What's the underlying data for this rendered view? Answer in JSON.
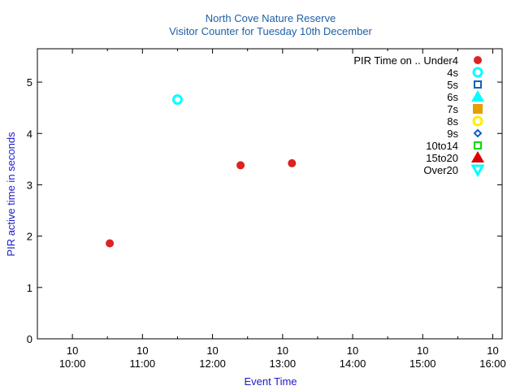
{
  "chart_data": {
    "type": "scatter",
    "title": "North Cove Nature Reserve",
    "subtitle": "Visitor Counter for Tuesday 10th December",
    "xlabel": "Event Time",
    "ylabel": "PIR active time in seconds",
    "x_ticks": [
      {
        "t": "10:00",
        "day": "10",
        "time": "10:00"
      },
      {
        "t": "11:00",
        "day": "10",
        "time": "11:00"
      },
      {
        "t": "12:00",
        "day": "10",
        "time": "12:00"
      },
      {
        "t": "13:00",
        "day": "10",
        "time": "13:00"
      },
      {
        "t": "14:00",
        "day": "10",
        "time": "14:00"
      },
      {
        "t": "15:00",
        "day": "10",
        "time": "15:00"
      },
      {
        "t": "16:00",
        "day": "10",
        "time": "16:00"
      }
    ],
    "xlim": [
      "09:30",
      "16:08"
    ],
    "y_ticks": [
      0,
      1,
      2,
      3,
      4,
      5
    ],
    "ylim": [
      0,
      5.65
    ],
    "legend_placement": "top-right",
    "grid": false,
    "series": [
      {
        "name": "PIR Time on .. Under4",
        "marker": "filled-circle",
        "color": "#dd2222",
        "points": [
          {
            "x": "10:32",
            "y": 1.86
          },
          {
            "x": "12:24",
            "y": 3.38
          },
          {
            "x": "13:08",
            "y": 3.42
          }
        ]
      },
      {
        "name": "4s",
        "marker": "open-circle",
        "color": "#00ffff",
        "points": [
          {
            "x": "11:30",
            "y": 4.66
          }
        ]
      },
      {
        "name": "5s",
        "marker": "open-square",
        "color": "#1060c0",
        "points": []
      },
      {
        "name": "6s",
        "marker": "filled-triangle-up",
        "color": "#00ffff",
        "points": []
      },
      {
        "name": "7s",
        "marker": "filled-square",
        "color": "#e69f00",
        "points": []
      },
      {
        "name": "8s",
        "marker": "open-circle",
        "color": "#ffee00",
        "points": []
      },
      {
        "name": "9s",
        "marker": "open-diamond",
        "color": "#1060c0",
        "points": []
      },
      {
        "name": "10to14",
        "marker": "open-square",
        "color": "#00dd00",
        "points": []
      },
      {
        "name": "15to20",
        "marker": "filled-triangle-up",
        "color": "#dd0000",
        "points": []
      },
      {
        "name": "Over20",
        "marker": "open-triangle-down",
        "color": "#00ffff",
        "points": []
      }
    ]
  }
}
